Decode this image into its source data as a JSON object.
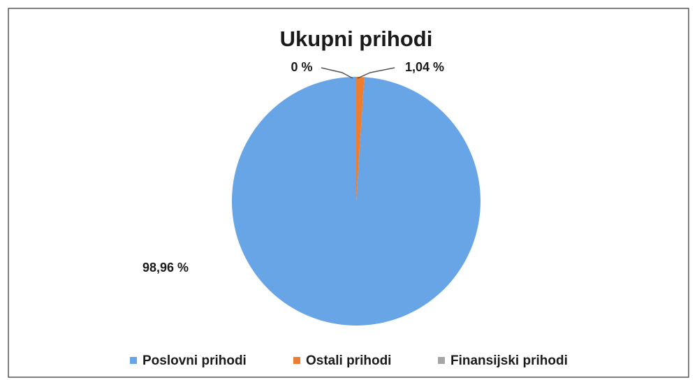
{
  "chart_data": {
    "type": "pie",
    "title": "Ukupni prihodi",
    "categories": [
      "Poslovni prihodi",
      "Ostali prihodi",
      "Finansijski prihodi"
    ],
    "values": [
      98.96,
      1.04,
      0
    ],
    "value_labels": [
      "98,96 %",
      "1,04 %",
      "0 %"
    ],
    "colors": [
      "#67a5e6",
      "#ed7d31",
      "#a5a5a5"
    ],
    "legend": "bottom"
  }
}
